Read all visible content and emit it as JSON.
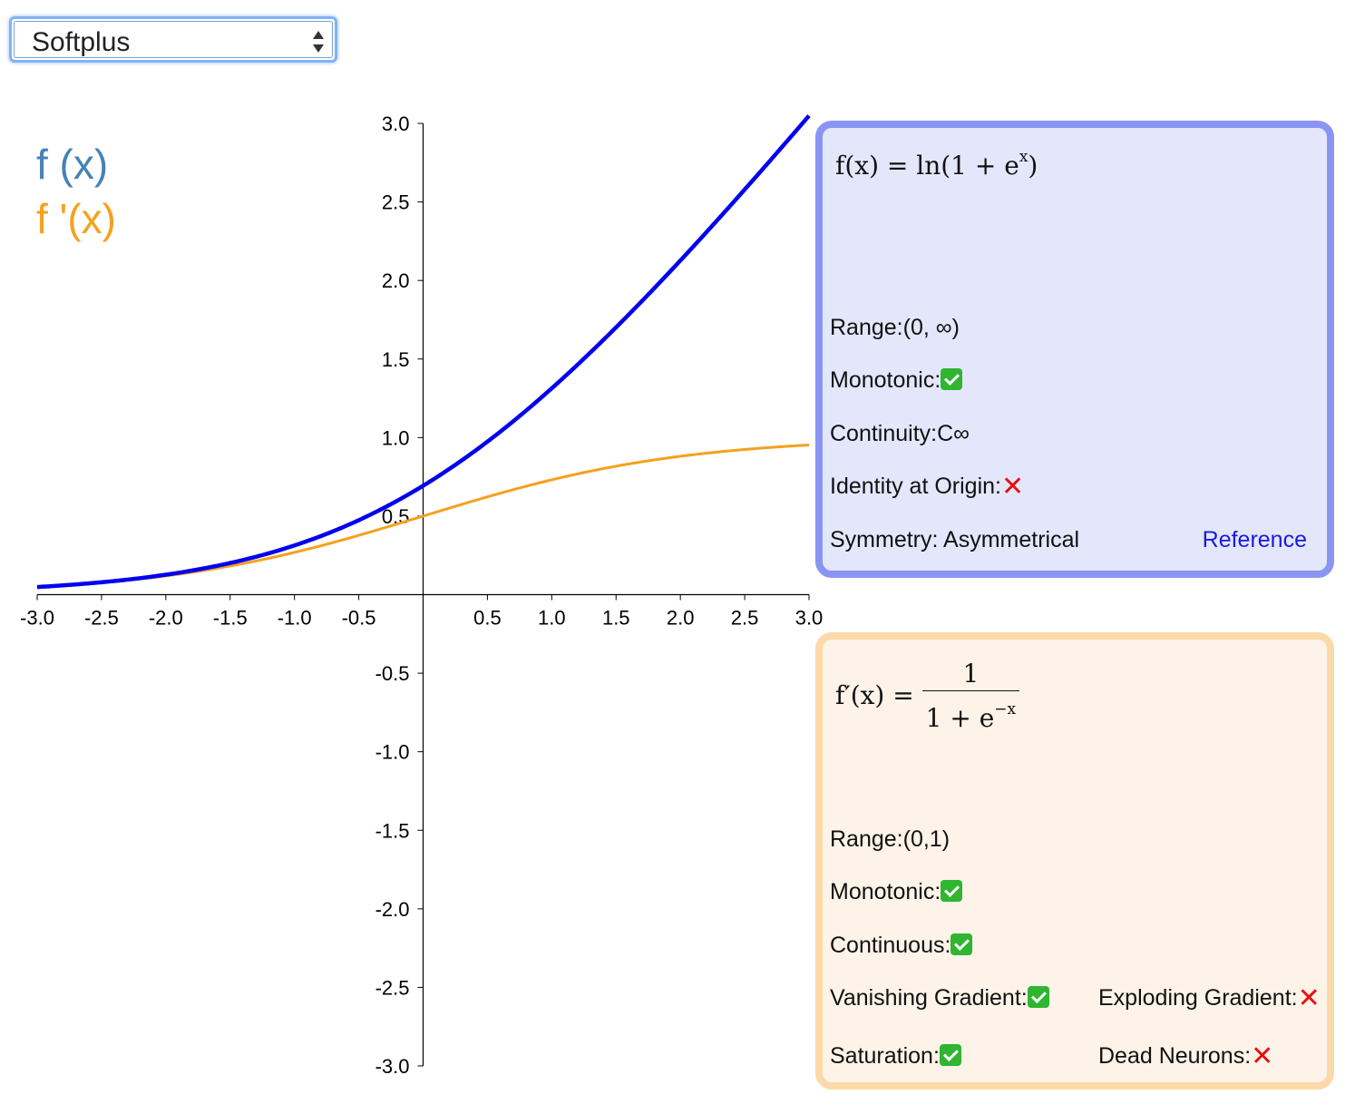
{
  "selector": {
    "value": "Softplus"
  },
  "legend": {
    "fx": "f (x)",
    "dfx": "f '(x)"
  },
  "colors": {
    "fx": "#0000ee",
    "dfx": "#f5a11c",
    "legend_fx": "#4682b4",
    "legend_dfx": "#f5a11c"
  },
  "function_panel": {
    "formula": {
      "lhs": "f(x) = ln(1 + e",
      "sup": "x",
      "rhs": ")"
    },
    "range_label": "Range:",
    "range_value": "(0, ∞)",
    "monotonic_label": "Monotonic:",
    "monotonic": "yes",
    "continuity_label": "Continuity:",
    "continuity_value": "C∞",
    "identity_label": "Identity at Origin:",
    "identity": "no",
    "symmetry_label": "Symmetry: ",
    "symmetry_value": "Asymmetrical",
    "reference_label": "Reference"
  },
  "derivative_panel": {
    "formula": {
      "lhs": "f′(x) = ",
      "numerator": "1",
      "denominator": "1 + e",
      "den_sup": "−x"
    },
    "range_label": "Range:",
    "range_value": "(0,1)",
    "monotonic_label": "Monotonic:",
    "monotonic": "yes",
    "continuous_label": "Continuous:",
    "continuous": "yes",
    "vanishing_label": "Vanishing Gradient:",
    "vanishing": "yes",
    "exploding_label": "Exploding Gradient:",
    "exploding": "no",
    "saturation_label": "Saturation:",
    "saturation": "yes",
    "dead_label": "Dead Neurons:",
    "dead": "no"
  },
  "chart_data": {
    "type": "line",
    "title": "",
    "xlabel": "",
    "ylabel": "",
    "xlim": [
      -3,
      3
    ],
    "ylim": [
      -3,
      3
    ],
    "x_ticks": [
      -3.0,
      -2.5,
      -2.0,
      -1.5,
      -1.0,
      -0.5,
      0.5,
      1.0,
      1.5,
      2.0,
      2.5,
      3.0
    ],
    "x_tick_labels": [
      "-3.0",
      "-2.5",
      "-2.0",
      "-1.5",
      "-1.0",
      "-0.5",
      "0.5",
      "1.0",
      "1.5",
      "2.0",
      "2.5",
      "3.0"
    ],
    "y_ticks": [
      3.0,
      2.5,
      2.0,
      1.5,
      1.0,
      0.5,
      -0.5,
      -1.0,
      -1.5,
      -2.0,
      -2.5,
      -3.0
    ],
    "y_tick_labels": [
      "3.0",
      "2.5",
      "2.0",
      "1.5",
      "1.0",
      "0.5",
      "-0.5",
      "-1.0",
      "-1.5",
      "-2.0",
      "-2.5",
      "-3.0"
    ],
    "grid": false,
    "series": [
      {
        "name": "f (x)",
        "color": "#0000ee",
        "x": [
          -3.0,
          -2.5,
          -2.0,
          -1.5,
          -1.0,
          -0.5,
          0.0,
          0.5,
          1.0,
          1.5,
          2.0,
          2.5,
          3.0
        ],
        "y": [
          0.049,
          0.079,
          0.127,
          0.201,
          0.313,
          0.474,
          0.693,
          0.974,
          1.313,
          1.701,
          2.127,
          2.579,
          3.049
        ]
      },
      {
        "name": "f '(x)",
        "color": "#f5a11c",
        "x": [
          -3.0,
          -2.5,
          -2.0,
          -1.5,
          -1.0,
          -0.5,
          0.0,
          0.5,
          1.0,
          1.5,
          2.0,
          2.5,
          3.0
        ],
        "y": [
          0.047,
          0.076,
          0.119,
          0.182,
          0.269,
          0.378,
          0.5,
          0.622,
          0.731,
          0.818,
          0.881,
          0.924,
          0.953
        ]
      }
    ]
  }
}
